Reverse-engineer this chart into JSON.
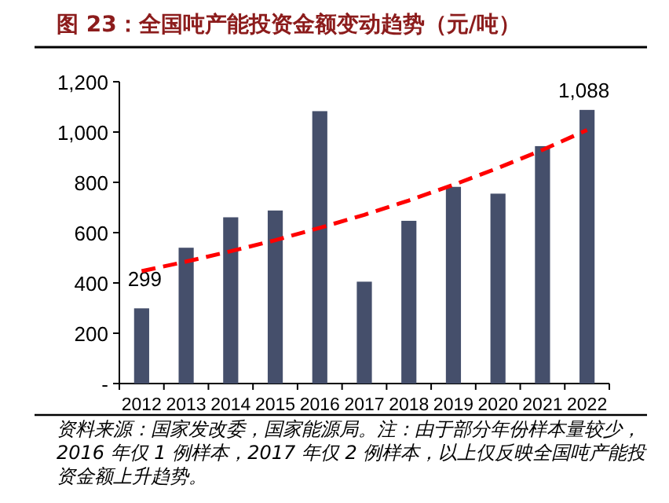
{
  "chart_data": {
    "type": "bar",
    "title": "图 23：全国吨产能投资金额变动趋势（元/吨）",
    "categories": [
      "2012",
      "2013",
      "2014",
      "2015",
      "2016",
      "2017",
      "2018",
      "2019",
      "2020",
      "2021",
      "2022"
    ],
    "series": [
      {
        "color": "#454f6b",
        "values": [
          299,
          540,
          661,
          688,
          1083,
          405,
          647,
          782,
          755,
          944,
          1088
        ],
        "value_labels": [
          "299",
          null,
          null,
          null,
          null,
          null,
          null,
          null,
          null,
          null,
          "1,088"
        ]
      },
      {
        "type": "line",
        "color": "#ff0000",
        "line_style": "dashed",
        "values": [
          447,
          485,
          526,
          570,
          619,
          671,
          728,
          790,
          857,
          929,
          1008
        ]
      }
    ],
    "ylim": [
      0,
      1200
    ],
    "yticks": [
      {
        "value": 0,
        "label": "-"
      },
      200,
      400,
      600,
      800,
      {
        "value": 1000,
        "label": "1,000"
      },
      {
        "value": 1200,
        "label": "1,200"
      }
    ],
    "grid": false,
    "annotations": [
      "资料来源：国家发改委，国家能源局。注：由于部分年份样本量较少，2016 年仅 1 例样本，2017 年仅 2 例样本，以上仅反映全国吨产能投资金额上升趋势。"
    ]
  }
}
